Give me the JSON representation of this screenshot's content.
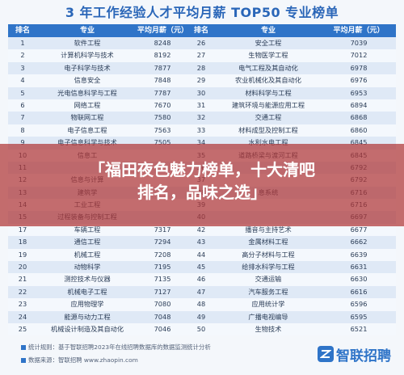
{
  "title": "3 年工作经验人才平均月薪 TOP50 专业榜单",
  "table": {
    "headers": [
      "排名",
      "专业",
      "平均月薪（元）",
      "排名",
      "专业",
      "平均月薪（元）"
    ],
    "rows": [
      [
        "1",
        "软件工程",
        "8248",
        "26",
        "安全工程",
        "7039"
      ],
      [
        "2",
        "计算机科学与技术",
        "8192",
        "27",
        "生物医学工程",
        "7012"
      ],
      [
        "3",
        "电子科学与技术",
        "7877",
        "28",
        "电气工程及其自动化",
        "6978"
      ],
      [
        "4",
        "信息安全",
        "7848",
        "29",
        "农业机械化及其自动化",
        "6976"
      ],
      [
        "5",
        "光电信息科学与工程",
        "7787",
        "30",
        "材料科学与工程",
        "6953"
      ],
      [
        "6",
        "网络工程",
        "7670",
        "31",
        "建筑环境与能源应用工程",
        "6894"
      ],
      [
        "7",
        "物联网工程",
        "7580",
        "32",
        "交通工程",
        "6868"
      ],
      [
        "8",
        "电子信息工程",
        "7563",
        "33",
        "材料成型及控制工程",
        "6860"
      ],
      [
        "9",
        "电子信息科学与技术",
        "7505",
        "34",
        "水利水电工程",
        "6845"
      ],
      [
        "10",
        "信息工",
        "",
        "35",
        "道路桥梁与渡河工程",
        "6845"
      ],
      [
        "11",
        "",
        "",
        "36",
        "",
        "6792"
      ],
      [
        "12",
        "信息与计算",
        "",
        "37",
        "",
        "6792"
      ],
      [
        "13",
        "建筑学",
        "",
        "38",
        "息系统",
        "6716"
      ],
      [
        "14",
        "工业工程",
        "",
        "39",
        "",
        "6716"
      ],
      [
        "15",
        "过程装备与控制工程",
        "",
        "40",
        "",
        "6697"
      ],
      [
        "17",
        "车辆工程",
        "7317",
        "42",
        "播音与主持艺术",
        "6677"
      ],
      [
        "18",
        "通信工程",
        "7294",
        "43",
        "金属材料工程",
        "6662"
      ],
      [
        "19",
        "机械工程",
        "7208",
        "44",
        "高分子材料与工程",
        "6639"
      ],
      [
        "20",
        "动物科学",
        "7195",
        "45",
        "给排水科学与工程",
        "6631"
      ],
      [
        "21",
        "测控技术与仪器",
        "7135",
        "46",
        "交通运输",
        "6630"
      ],
      [
        "22",
        "机械电子工程",
        "7127",
        "47",
        "汽车服务工程",
        "6616"
      ],
      [
        "23",
        "应用物理学",
        "7080",
        "48",
        "应用统计学",
        "6596"
      ],
      [
        "24",
        "能源与动力工程",
        "7048",
        "49",
        "广播电视编导",
        "6595"
      ],
      [
        "25",
        "机械设计制造及其自动化",
        "7046",
        "50",
        "生物技术",
        "6521"
      ]
    ]
  },
  "banner": {
    "line1": "「福田夜色魅力榜单，十大清吧",
    "line2": "排名，品味之选」"
  },
  "footer": {
    "note1": "统计规则：基于智联招聘2023年在线招聘数据库的数据监测统计分析",
    "note2": "数据来源：智联招聘 www.zhaopin.com",
    "logo_text": "智联招聘"
  },
  "colors": {
    "accent": "#2f74c8",
    "banner": "#b03636"
  }
}
